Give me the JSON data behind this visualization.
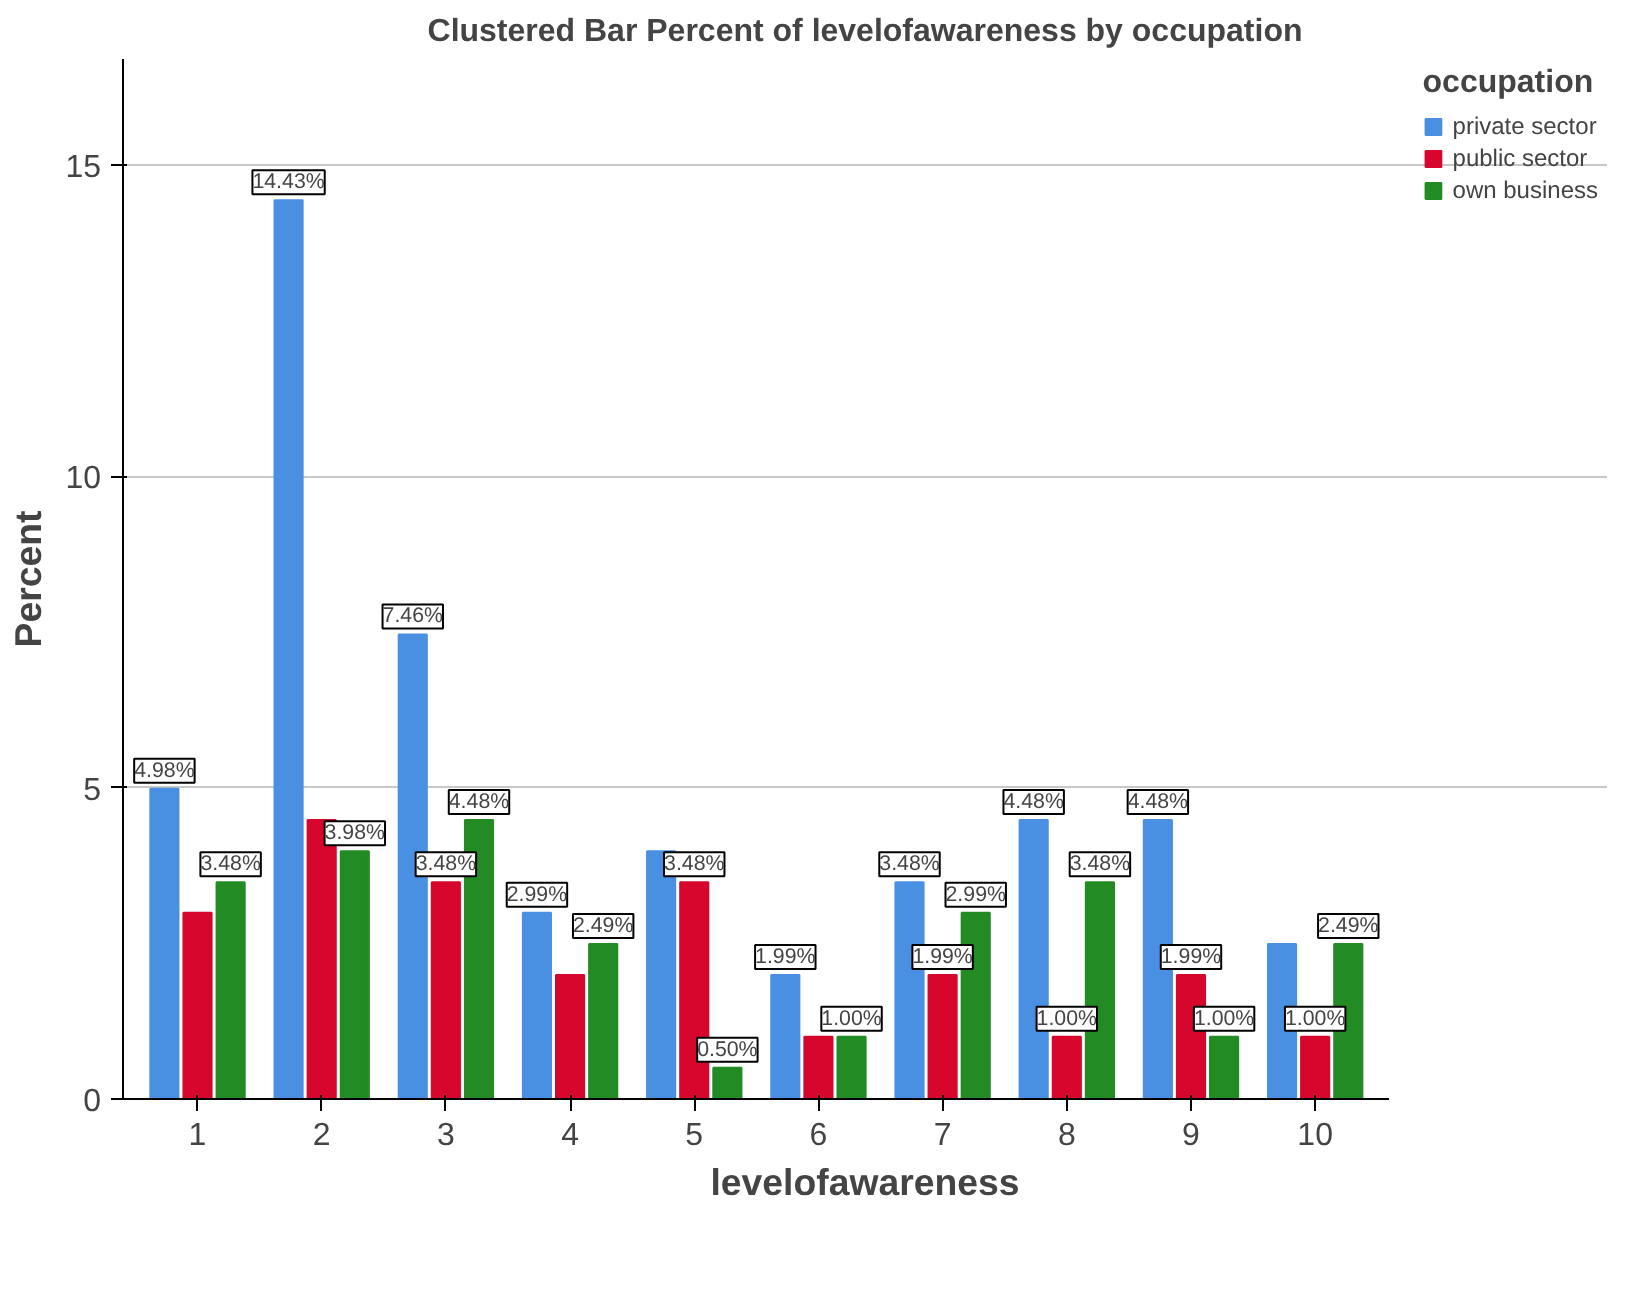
{
  "chart_data": {
    "type": "bar",
    "title": "Clustered Bar Percent of levelofawareness by occupation",
    "xlabel": "levelofawareness",
    "ylabel": "Percent",
    "legend_title": "occupation",
    "categories": [
      "1",
      "2",
      "3",
      "4",
      "5",
      "6",
      "7",
      "8",
      "9",
      "10"
    ],
    "series": [
      {
        "name": "private sector",
        "color": "#4a90e2",
        "values": [
          4.98,
          14.43,
          7.46,
          2.99,
          3.98,
          1.99,
          3.48,
          4.48,
          4.48,
          2.49
        ],
        "value_labels": [
          "4.98%",
          "14.43%",
          "7.46%",
          "2.99%",
          null,
          "1.99%",
          "3.48%",
          "4.48%",
          "4.48%",
          null
        ]
      },
      {
        "name": "public sector",
        "color": "#d7062c",
        "values": [
          2.99,
          4.48,
          3.48,
          1.99,
          3.48,
          1.0,
          1.99,
          1.0,
          1.99,
          1.0
        ],
        "value_labels": [
          null,
          null,
          "3.48%",
          null,
          "3.48%",
          null,
          "1.99%",
          "1.00%",
          "1.99%",
          "1.00%"
        ]
      },
      {
        "name": "own business",
        "color": "#238b23",
        "values": [
          3.48,
          3.98,
          4.48,
          2.49,
          0.5,
          1.0,
          2.99,
          3.48,
          1.0,
          2.49
        ],
        "value_labels": [
          "3.48%",
          "3.98%",
          "4.48%",
          "2.49%",
          "0.50%",
          "1.00%",
          "2.99%",
          "3.48%",
          "1.00%",
          "2.49%"
        ]
      }
    ],
    "ylim": [
      0,
      16.7
    ],
    "yticks": [
      0,
      5,
      10,
      15
    ],
    "grid": "y",
    "legend": "top right"
  }
}
